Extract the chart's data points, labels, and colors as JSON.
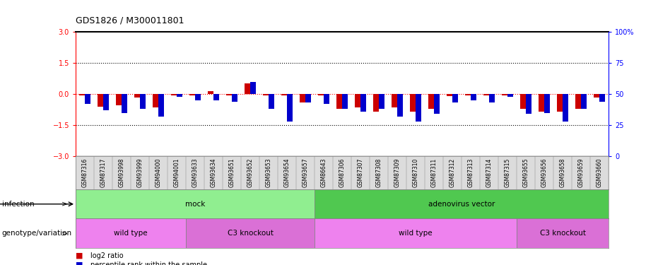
{
  "title": "GDS1826 / M300011801",
  "samples": [
    "GSM87316",
    "GSM87317",
    "GSM93998",
    "GSM93999",
    "GSM94000",
    "GSM94001",
    "GSM93633",
    "GSM93634",
    "GSM93651",
    "GSM93652",
    "GSM93653",
    "GSM93654",
    "GSM93657",
    "GSM86643",
    "GSM87306",
    "GSM87307",
    "GSM87308",
    "GSM87309",
    "GSM87310",
    "GSM87311",
    "GSM87312",
    "GSM87313",
    "GSM87314",
    "GSM87315",
    "GSM93655",
    "GSM93656",
    "GSM93658",
    "GSM93659",
    "GSM93660"
  ],
  "log2_ratio": [
    -0.05,
    -0.6,
    -0.55,
    -0.15,
    -0.65,
    -0.05,
    -0.05,
    0.15,
    -0.05,
    0.5,
    -0.05,
    -0.05,
    -0.4,
    -0.05,
    -0.7,
    -0.65,
    -0.85,
    -0.65,
    -0.85,
    -0.7,
    -0.1,
    -0.05,
    -0.05,
    -0.05,
    -0.7,
    -0.85,
    -0.85,
    -0.7,
    -0.15
  ],
  "percentile_rank": [
    42,
    37,
    35,
    38,
    32,
    48,
    45,
    45,
    44,
    60,
    38,
    28,
    43,
    42,
    38,
    36,
    38,
    32,
    28,
    34,
    43,
    45,
    43,
    48,
    34,
    35,
    28,
    38,
    44
  ],
  "infection_groups": [
    {
      "label": "mock",
      "start": 0,
      "end": 13,
      "color": "#90EE90"
    },
    {
      "label": "adenovirus vector",
      "start": 13,
      "end": 29,
      "color": "#50C850"
    }
  ],
  "genotype_groups": [
    {
      "label": "wild type",
      "start": 0,
      "end": 6,
      "color": "#EE82EE"
    },
    {
      "label": "C3 knockout",
      "start": 6,
      "end": 13,
      "color": "#DA70D6"
    },
    {
      "label": "wild type",
      "start": 13,
      "end": 24,
      "color": "#EE82EE"
    },
    {
      "label": "C3 knockout",
      "start": 24,
      "end": 29,
      "color": "#DA70D6"
    }
  ],
  "ylim_left": [
    -3,
    3
  ],
  "ylim_right": [
    0,
    100
  ],
  "yticks_left": [
    -3,
    -1.5,
    0,
    1.5,
    3
  ],
  "yticks_right": [
    0,
    25,
    50,
    75,
    100
  ],
  "hlines": [
    1.5,
    -1.5
  ],
  "bar_color_red": "#CC0000",
  "bar_color_blue": "#0000CC",
  "bg_color": "#DCDCDC"
}
